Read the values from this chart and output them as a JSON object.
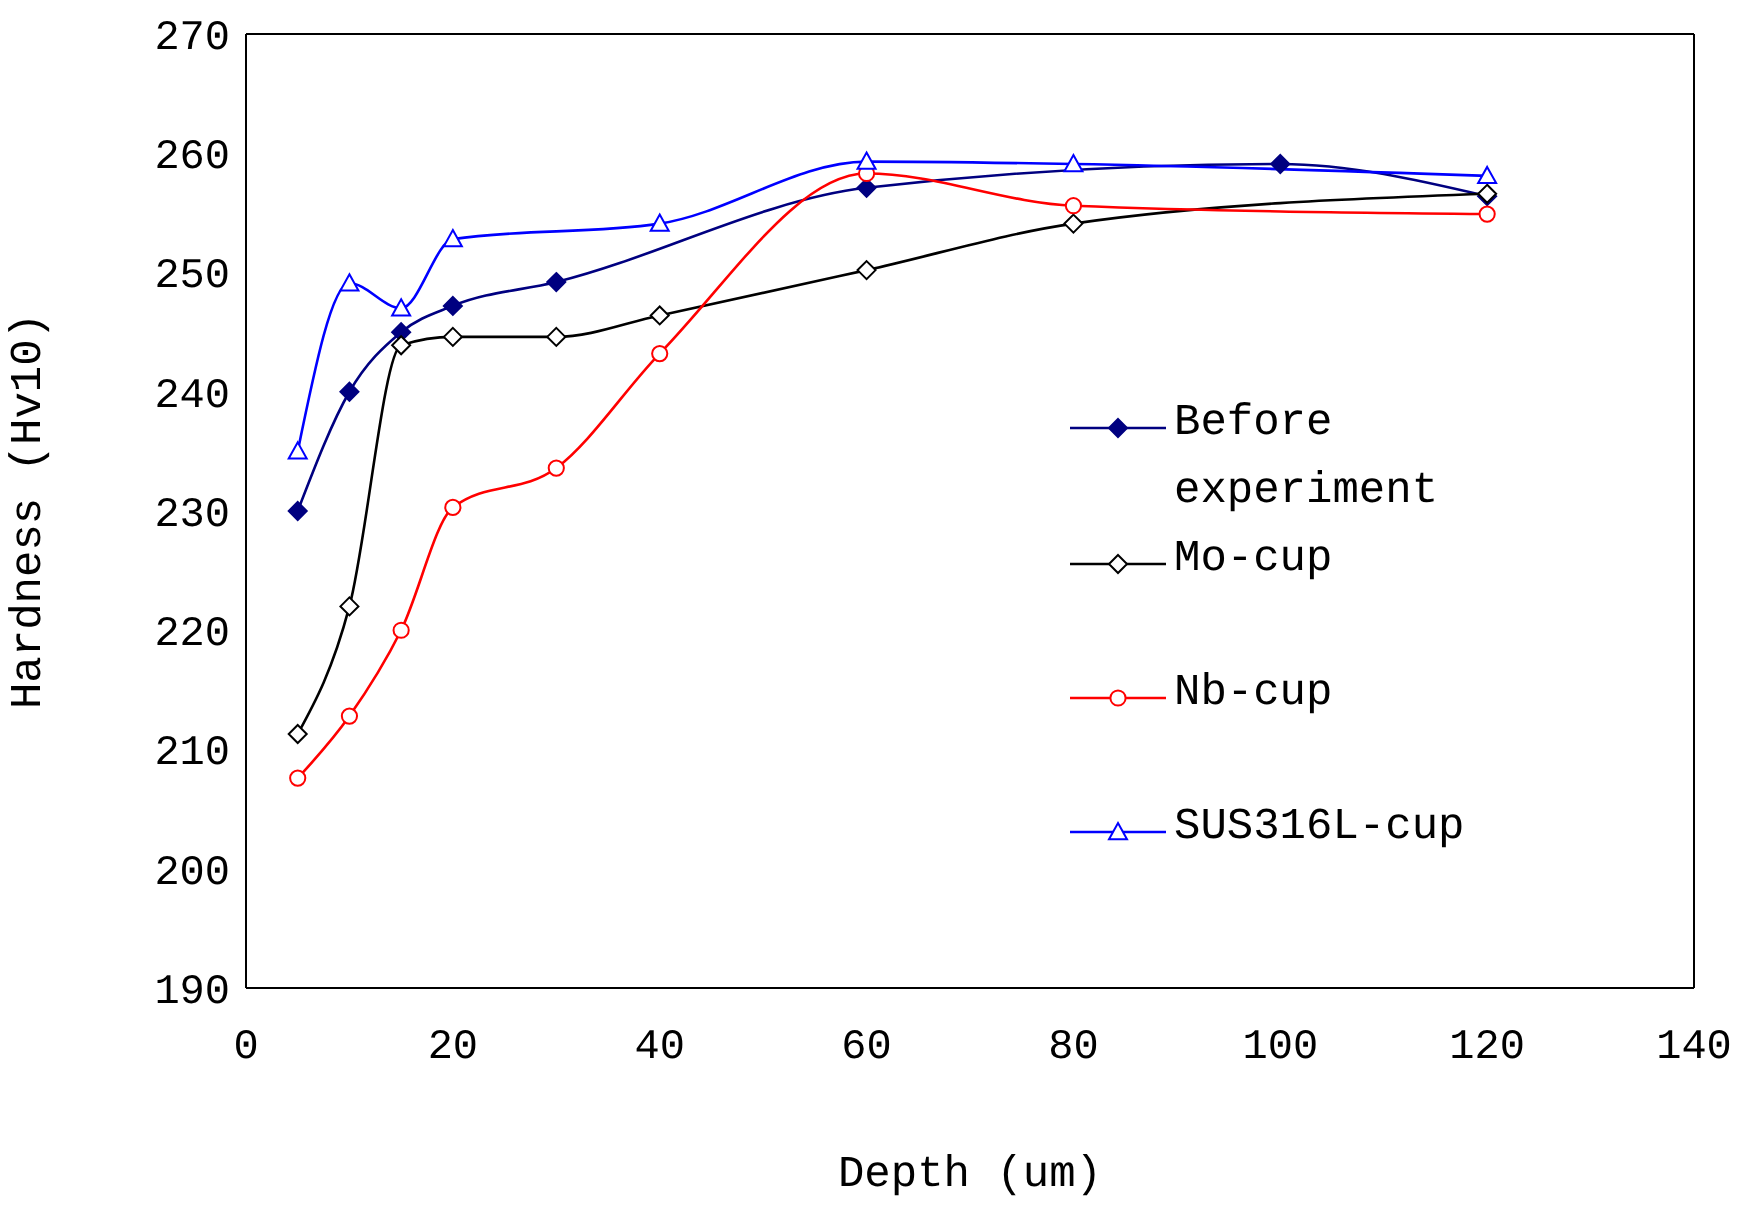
{
  "chart_data": {
    "type": "line",
    "xlabel": "Depth (um)",
    "ylabel": "Hardness (Hv10)",
    "xlim": [
      0,
      140
    ],
    "xticks": [
      0,
      20,
      40,
      60,
      80,
      100,
      120,
      140
    ],
    "ylim": [
      190,
      270
    ],
    "yticks": [
      190,
      200,
      210,
      220,
      230,
      240,
      250,
      260,
      270
    ],
    "grid": false,
    "legend": "right",
    "series": [
      {
        "name": "Before experiment",
        "color": "#000080",
        "marker": "diamond",
        "x": [
          5,
          10,
          15,
          20,
          30,
          60,
          100,
          120
        ],
        "values": [
          230,
          240,
          245,
          247.2,
          249.2,
          257.1,
          259.1,
          256.4
        ]
      },
      {
        "name": "Mo-cup",
        "color": "#000000",
        "marker": "diamond",
        "x": [
          5,
          10,
          15,
          20,
          30,
          40,
          60,
          80,
          120
        ],
        "values": [
          211.3,
          222,
          243.9,
          244.6,
          244.6,
          246.4,
          250.2,
          254.1,
          256.6
        ]
      },
      {
        "name": "Nb-cup",
        "color": "#ff0000",
        "marker": "circle",
        "x": [
          5,
          10,
          15,
          20,
          30,
          40,
          60,
          80,
          120
        ],
        "values": [
          207.6,
          212.8,
          220,
          230.3,
          233.6,
          243.2,
          258.3,
          255.6,
          254.9
        ]
      },
      {
        "name": "SUS316L-cup",
        "color": "#0000ff",
        "marker": "triangle",
        "x": [
          5,
          10,
          15,
          20,
          40,
          60,
          80,
          120
        ],
        "values": [
          235,
          249.1,
          247,
          252.8,
          254.1,
          259.3,
          259.1,
          258.1
        ]
      }
    ]
  }
}
